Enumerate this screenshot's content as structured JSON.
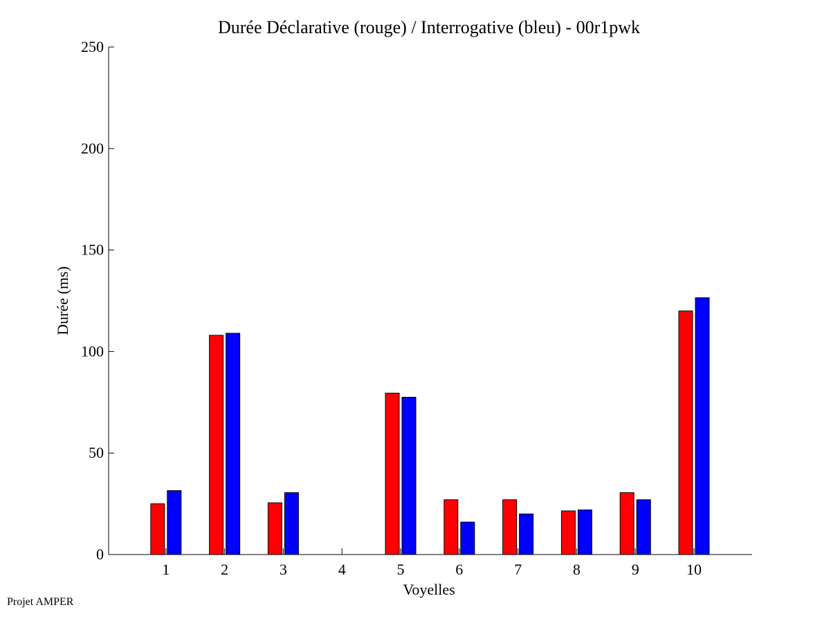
{
  "chart_data": {
    "type": "bar",
    "title": "Durée Déclarative (rouge) / Interrogative (bleu) - 00r1pwk",
    "xlabel": "Voyelles",
    "ylabel": "Durée (ms)",
    "categories": [
      "1",
      "2",
      "3",
      "4",
      "5",
      "6",
      "7",
      "8",
      "9",
      "10"
    ],
    "ylim": [
      0,
      250
    ],
    "yticks": [
      0,
      50,
      100,
      150,
      200,
      250
    ],
    "grid": false,
    "series": [
      {
        "color": "#ff0000",
        "values": [
          25,
          108,
          25.5,
          0,
          79.5,
          27,
          27,
          21.5,
          30.5,
          120
        ]
      },
      {
        "color": "#0000ff",
        "values": [
          31.5,
          109,
          30.5,
          0,
          77.5,
          16,
          20,
          22,
          27,
          126.5
        ]
      }
    ]
  },
  "footer": {
    "text": "Projet AMPER"
  }
}
